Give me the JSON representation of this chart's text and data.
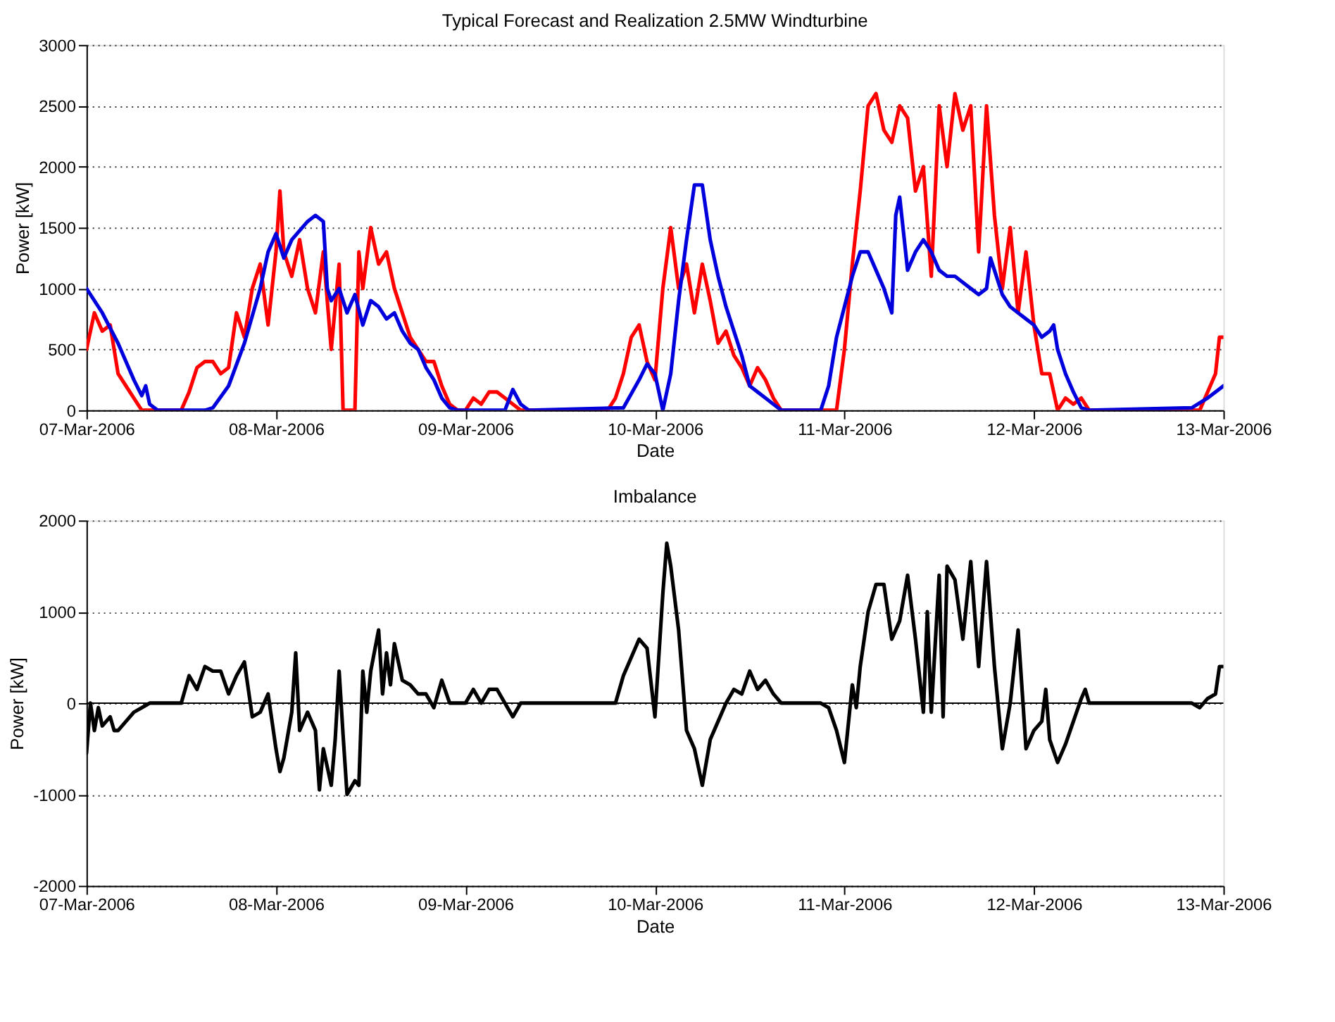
{
  "chart_data": [
    {
      "type": "line",
      "title": "Typical Forecast and Realization 2.5MW Windturbine",
      "xlabel": "Date",
      "ylabel": "Power [kW]",
      "grid": "y",
      "line_style": "solid",
      "xlim": [
        "2006-03-07",
        "2006-03-13"
      ],
      "ylim": [
        0,
        3000
      ],
      "yticks": [
        0,
        500,
        1000,
        1500,
        2000,
        2500,
        3000
      ],
      "xticks": [
        {
          "value": "2006-03-07",
          "label": "07-Mar-2006"
        },
        {
          "value": "2006-03-08",
          "label": "08-Mar-2006"
        },
        {
          "value": "2006-03-09",
          "label": "09-Mar-2006"
        },
        {
          "value": "2006-03-10",
          "label": "10-Mar-2006"
        },
        {
          "value": "2006-03-11",
          "label": "11-Mar-2006"
        },
        {
          "value": "2006-03-12",
          "label": "12-Mar-2006"
        },
        {
          "value": "2006-03-13",
          "label": "13-Mar-2006"
        }
      ],
      "series": [
        {
          "color": "#ff0000",
          "x": [
            "2006-03-07T00:00",
            "2006-03-07T01:00",
            "2006-03-07T02:00",
            "2006-03-07T03:00",
            "2006-03-07T04:00",
            "2006-03-07T05:00",
            "2006-03-07T06:00",
            "2006-03-07T07:00",
            "2006-03-07T12:00",
            "2006-03-07T13:00",
            "2006-03-07T14:00",
            "2006-03-07T15:00",
            "2006-03-07T16:00",
            "2006-03-07T17:00",
            "2006-03-07T18:00",
            "2006-03-07T19:00",
            "2006-03-07T20:00",
            "2006-03-07T21:00",
            "2006-03-07T22:00",
            "2006-03-07T23:00",
            "2006-03-08T00:00",
            "2006-03-08T00:30",
            "2006-03-08T01:00",
            "2006-03-08T02:00",
            "2006-03-08T03:00",
            "2006-03-08T04:00",
            "2006-03-08T05:00",
            "2006-03-08T06:00",
            "2006-03-08T07:00",
            "2006-03-08T08:00",
            "2006-03-08T08:30",
            "2006-03-08T10:00",
            "2006-03-08T10:30",
            "2006-03-08T11:00",
            "2006-03-08T12:00",
            "2006-03-08T13:00",
            "2006-03-08T14:00",
            "2006-03-08T15:00",
            "2006-03-08T16:00",
            "2006-03-08T17:00",
            "2006-03-08T18:00",
            "2006-03-08T19:00",
            "2006-03-08T20:00",
            "2006-03-08T21:00",
            "2006-03-08T22:00",
            "2006-03-08T23:00",
            "2006-03-09T00:00",
            "2006-03-09T01:00",
            "2006-03-09T02:00",
            "2006-03-09T03:00",
            "2006-03-09T04:00",
            "2006-03-09T05:00",
            "2006-03-09T06:00",
            "2006-03-09T07:00",
            "2006-03-09T18:00",
            "2006-03-09T19:00",
            "2006-03-09T20:00",
            "2006-03-09T21:00",
            "2006-03-09T22:00",
            "2006-03-09T23:00",
            "2006-03-10T00:00",
            "2006-03-10T01:00",
            "2006-03-10T02:00",
            "2006-03-10T03:00",
            "2006-03-10T04:00",
            "2006-03-10T05:00",
            "2006-03-10T06:00",
            "2006-03-10T07:00",
            "2006-03-10T08:00",
            "2006-03-10T09:00",
            "2006-03-10T10:00",
            "2006-03-10T11:00",
            "2006-03-10T12:00",
            "2006-03-10T13:00",
            "2006-03-10T14:00",
            "2006-03-10T15:00",
            "2006-03-10T16:00",
            "2006-03-10T23:00",
            "2006-03-11T00:00",
            "2006-03-11T01:00",
            "2006-03-11T02:00",
            "2006-03-11T03:00",
            "2006-03-11T04:00",
            "2006-03-11T05:00",
            "2006-03-11T06:00",
            "2006-03-11T07:00",
            "2006-03-11T08:00",
            "2006-03-11T09:00",
            "2006-03-11T10:00",
            "2006-03-11T11:00",
            "2006-03-11T12:00",
            "2006-03-11T13:00",
            "2006-03-11T14:00",
            "2006-03-11T15:00",
            "2006-03-11T16:00",
            "2006-03-11T17:00",
            "2006-03-11T18:00",
            "2006-03-11T19:00",
            "2006-03-11T20:00",
            "2006-03-11T21:00",
            "2006-03-11T22:00",
            "2006-03-11T23:00",
            "2006-03-12T00:00",
            "2006-03-12T01:00",
            "2006-03-12T02:00",
            "2006-03-12T03:00",
            "2006-03-12T04:00",
            "2006-03-12T05:00",
            "2006-03-12T06:00",
            "2006-03-12T07:00",
            "2006-03-12T21:00",
            "2006-03-12T22:00",
            "2006-03-12T23:00",
            "2006-03-12T23:30",
            "2006-03-13T00:00"
          ],
          "values": [
            500,
            800,
            650,
            700,
            300,
            200,
            100,
            0,
            0,
            150,
            350,
            400,
            400,
            300,
            350,
            800,
            600,
            1000,
            1200,
            700,
            1300,
            1800,
            1300,
            1100,
            1400,
            1000,
            800,
            1300,
            500,
            1200,
            0,
            0,
            1300,
            1000,
            1500,
            1200,
            1300,
            1000,
            800,
            600,
            500,
            400,
            400,
            200,
            50,
            0,
            0,
            100,
            50,
            150,
            150,
            100,
            50,
            0,
            0,
            100,
            300,
            600,
            700,
            400,
            250,
            1000,
            1500,
            1000,
            1200,
            800,
            1200,
            900,
            550,
            650,
            450,
            350,
            200,
            350,
            250,
            100,
            0,
            0,
            500,
            1200,
            1800,
            2500,
            2600,
            2300,
            2200,
            2500,
            2400,
            1800,
            2000,
            1100,
            2500,
            2000,
            2600,
            2300,
            2500,
            1300,
            2500,
            1600,
            1000,
            1500,
            800,
            1300,
            700,
            300,
            300,
            0,
            100,
            50,
            100,
            0,
            0,
            150,
            300,
            600,
            600
          ]
        },
        {
          "color": "#0000dd",
          "x": [
            "2006-03-07T00:00",
            "2006-03-07T02:00",
            "2006-03-07T04:00",
            "2006-03-07T06:00",
            "2006-03-07T07:00",
            "2006-03-07T07:30",
            "2006-03-07T08:00",
            "2006-03-07T09:00",
            "2006-03-07T15:00",
            "2006-03-07T16:00",
            "2006-03-07T18:00",
            "2006-03-07T20:00",
            "2006-03-07T22:00",
            "2006-03-07T23:00",
            "2006-03-08T00:00",
            "2006-03-08T01:00",
            "2006-03-08T02:00",
            "2006-03-08T04:00",
            "2006-03-08T05:00",
            "2006-03-08T06:00",
            "2006-03-08T06:30",
            "2006-03-08T07:00",
            "2006-03-08T08:00",
            "2006-03-08T09:00",
            "2006-03-08T10:00",
            "2006-03-08T11:00",
            "2006-03-08T12:00",
            "2006-03-08T13:00",
            "2006-03-08T14:00",
            "2006-03-08T15:00",
            "2006-03-08T16:00",
            "2006-03-08T17:00",
            "2006-03-08T18:00",
            "2006-03-08T19:00",
            "2006-03-08T20:00",
            "2006-03-08T21:00",
            "2006-03-08T22:00",
            "2006-03-08T23:00",
            "2006-03-09T05:00",
            "2006-03-09T06:00",
            "2006-03-09T07:00",
            "2006-03-09T08:00",
            "2006-03-09T20:00",
            "2006-03-09T22:00",
            "2006-03-09T23:00",
            "2006-03-10T00:00",
            "2006-03-10T01:00",
            "2006-03-10T02:00",
            "2006-03-10T03:00",
            "2006-03-10T04:00",
            "2006-03-10T05:00",
            "2006-03-10T06:00",
            "2006-03-10T07:00",
            "2006-03-10T08:00",
            "2006-03-10T09:00",
            "2006-03-10T10:00",
            "2006-03-10T11:00",
            "2006-03-10T12:00",
            "2006-03-10T13:00",
            "2006-03-10T14:00",
            "2006-03-10T15:00",
            "2006-03-10T16:00",
            "2006-03-10T21:00",
            "2006-03-10T22:00",
            "2006-03-10T23:00",
            "2006-03-11T00:00",
            "2006-03-11T01:00",
            "2006-03-11T02:00",
            "2006-03-11T03:00",
            "2006-03-11T04:00",
            "2006-03-11T05:00",
            "2006-03-11T06:00",
            "2006-03-11T06:30",
            "2006-03-11T07:00",
            "2006-03-11T08:00",
            "2006-03-11T09:00",
            "2006-03-11T10:00",
            "2006-03-11T11:00",
            "2006-03-11T12:00",
            "2006-03-11T13:00",
            "2006-03-11T14:00",
            "2006-03-11T15:00",
            "2006-03-11T16:00",
            "2006-03-11T17:00",
            "2006-03-11T18:00",
            "2006-03-11T18:30",
            "2006-03-11T19:00",
            "2006-03-11T20:00",
            "2006-03-11T21:00",
            "2006-03-11T22:00",
            "2006-03-11T23:00",
            "2006-03-12T00:00",
            "2006-03-12T01:00",
            "2006-03-12T02:00",
            "2006-03-12T02:30",
            "2006-03-12T03:00",
            "2006-03-12T04:00",
            "2006-03-12T05:00",
            "2006-03-12T06:00",
            "2006-03-12T07:00",
            "2006-03-12T20:00",
            "2006-03-12T22:00",
            "2006-03-13T00:00"
          ],
          "values": [
            1000,
            800,
            550,
            250,
            120,
            200,
            50,
            0,
            0,
            20,
            200,
            550,
            1000,
            1300,
            1450,
            1250,
            1400,
            1550,
            1600,
            1550,
            1000,
            900,
            1000,
            800,
            950,
            700,
            900,
            850,
            750,
            800,
            650,
            550,
            500,
            350,
            250,
            100,
            20,
            0,
            0,
            170,
            50,
            0,
            20,
            250,
            380,
            300,
            0,
            300,
            900,
            1400,
            1850,
            1850,
            1400,
            1100,
            850,
            650,
            450,
            200,
            150,
            100,
            50,
            0,
            0,
            200,
            600,
            850,
            1100,
            1300,
            1300,
            1150,
            1000,
            800,
            1600,
            1750,
            1150,
            1300,
            1400,
            1300,
            1150,
            1100,
            1100,
            1050,
            1000,
            950,
            1000,
            1250,
            1150,
            950,
            850,
            800,
            750,
            700,
            600,
            650,
            700,
            500,
            300,
            150,
            20,
            0,
            20,
            100,
            200
          ]
        }
      ]
    },
    {
      "type": "line",
      "title": "Imbalance",
      "xlabel": "Date",
      "ylabel": "Power [kW]",
      "grid": "y",
      "line_style": "solid",
      "xlim": [
        "2006-03-07",
        "2006-03-13"
      ],
      "ylim": [
        -2000,
        2000
      ],
      "yticks": [
        -2000,
        -1000,
        0,
        1000,
        2000
      ],
      "xticks": [
        {
          "value": "2006-03-07",
          "label": "07-Mar-2006"
        },
        {
          "value": "2006-03-08",
          "label": "08-Mar-2006"
        },
        {
          "value": "2006-03-09",
          "label": "09-Mar-2006"
        },
        {
          "value": "2006-03-10",
          "label": "10-Mar-2006"
        },
        {
          "value": "2006-03-11",
          "label": "11-Mar-2006"
        },
        {
          "value": "2006-03-12",
          "label": "12-Mar-2006"
        },
        {
          "value": "2006-03-13",
          "label": "13-Mar-2006"
        }
      ],
      "ref_lines": [
        {
          "axis": "y",
          "value": 0,
          "color": "#000000"
        }
      ],
      "series": [
        {
          "color": "#000000",
          "x": [
            "2006-03-07T00:00",
            "2006-03-07T00:30",
            "2006-03-07T01:00",
            "2006-03-07T01:30",
            "2006-03-07T02:00",
            "2006-03-07T03:00",
            "2006-03-07T03:30",
            "2006-03-07T04:00",
            "2006-03-07T05:00",
            "2006-03-07T06:00",
            "2006-03-07T07:00",
            "2006-03-07T08:00",
            "2006-03-07T12:00",
            "2006-03-07T13:00",
            "2006-03-07T14:00",
            "2006-03-07T15:00",
            "2006-03-07T16:00",
            "2006-03-07T17:00",
            "2006-03-07T18:00",
            "2006-03-07T19:00",
            "2006-03-07T20:00",
            "2006-03-07T21:00",
            "2006-03-07T22:00",
            "2006-03-07T23:00",
            "2006-03-08T00:00",
            "2006-03-08T00:30",
            "2006-03-08T01:00",
            "2006-03-08T02:00",
            "2006-03-08T02:30",
            "2006-03-08T03:00",
            "2006-03-08T04:00",
            "2006-03-08T05:00",
            "2006-03-08T05:30",
            "2006-03-08T06:00",
            "2006-03-08T07:00",
            "2006-03-08T07:30",
            "2006-03-08T08:00",
            "2006-03-08T08:30",
            "2006-03-08T09:00",
            "2006-03-08T10:00",
            "2006-03-08T10:30",
            "2006-03-08T11:00",
            "2006-03-08T11:30",
            "2006-03-08T12:00",
            "2006-03-08T13:00",
            "2006-03-08T13:30",
            "2006-03-08T14:00",
            "2006-03-08T14:30",
            "2006-03-08T15:00",
            "2006-03-08T16:00",
            "2006-03-08T17:00",
            "2006-03-08T18:00",
            "2006-03-08T19:00",
            "2006-03-08T20:00",
            "2006-03-08T21:00",
            "2006-03-08T22:00",
            "2006-03-09T00:00",
            "2006-03-09T01:00",
            "2006-03-09T02:00",
            "2006-03-09T03:00",
            "2006-03-09T04:00",
            "2006-03-09T05:00",
            "2006-03-09T06:00",
            "2006-03-09T07:00",
            "2006-03-09T19:00",
            "2006-03-09T20:00",
            "2006-03-09T21:00",
            "2006-03-09T22:00",
            "2006-03-09T23:00",
            "2006-03-10T00:00",
            "2006-03-10T01:00",
            "2006-03-10T01:30",
            "2006-03-10T02:00",
            "2006-03-10T03:00",
            "2006-03-10T04:00",
            "2006-03-10T05:00",
            "2006-03-10T06:00",
            "2006-03-10T07:00",
            "2006-03-10T08:00",
            "2006-03-10T09:00",
            "2006-03-10T10:00",
            "2006-03-10T11:00",
            "2006-03-10T12:00",
            "2006-03-10T13:00",
            "2006-03-10T14:00",
            "2006-03-10T15:00",
            "2006-03-10T16:00",
            "2006-03-10T21:00",
            "2006-03-10T22:00",
            "2006-03-10T23:00",
            "2006-03-11T00:00",
            "2006-03-11T01:00",
            "2006-03-11T01:30",
            "2006-03-11T02:00",
            "2006-03-11T03:00",
            "2006-03-11T04:00",
            "2006-03-11T05:00",
            "2006-03-11T06:00",
            "2006-03-11T07:00",
            "2006-03-11T08:00",
            "2006-03-11T09:00",
            "2006-03-11T10:00",
            "2006-03-11T10:30",
            "2006-03-11T11:00",
            "2006-03-11T12:00",
            "2006-03-11T12:30",
            "2006-03-11T13:00",
            "2006-03-11T14:00",
            "2006-03-11T15:00",
            "2006-03-11T16:00",
            "2006-03-11T17:00",
            "2006-03-11T18:00",
            "2006-03-11T19:00",
            "2006-03-11T20:00",
            "2006-03-11T21:00",
            "2006-03-11T22:00",
            "2006-03-11T23:00",
            "2006-03-12T00:00",
            "2006-03-12T01:00",
            "2006-03-12T01:30",
            "2006-03-12T02:00",
            "2006-03-12T03:00",
            "2006-03-12T04:00",
            "2006-03-12T05:00",
            "2006-03-12T06:00",
            "2006-03-12T06:30",
            "2006-03-12T07:00",
            "2006-03-12T20:00",
            "2006-03-12T21:00",
            "2006-03-12T22:00",
            "2006-03-12T23:00",
            "2006-03-12T23:30",
            "2006-03-13T00:00"
          ],
          "values": [
            -550,
            0,
            -300,
            -50,
            -250,
            -150,
            -300,
            -300,
            -200,
            -100,
            -50,
            0,
            0,
            300,
            150,
            400,
            350,
            350,
            100,
            300,
            450,
            -150,
            -100,
            100,
            -500,
            -750,
            -600,
            -100,
            550,
            -300,
            -100,
            -300,
            -950,
            -500,
            -900,
            -400,
            350,
            -350,
            -1000,
            -850,
            -900,
            350,
            -100,
            350,
            800,
            100,
            550,
            200,
            650,
            250,
            200,
            100,
            100,
            -50,
            250,
            0,
            0,
            150,
            0,
            150,
            150,
            0,
            -150,
            0,
            0,
            300,
            500,
            700,
            600,
            -150,
            1200,
            1750,
            1500,
            800,
            -300,
            -500,
            -900,
            -400,
            -200,
            0,
            150,
            100,
            350,
            150,
            250,
            100,
            0,
            0,
            -50,
            -300,
            -650,
            200,
            -50,
            400,
            1000,
            1300,
            1300,
            700,
            900,
            1400,
            700,
            -100,
            1000,
            -100,
            1400,
            -150,
            1500,
            1350,
            700,
            1550,
            400,
            1550,
            400,
            -500,
            0,
            800,
            -500,
            -300,
            -200,
            150,
            -400,
            -650,
            -450,
            -200,
            50,
            150,
            0,
            0,
            -50,
            50,
            100,
            400,
            400
          ]
        }
      ]
    }
  ]
}
